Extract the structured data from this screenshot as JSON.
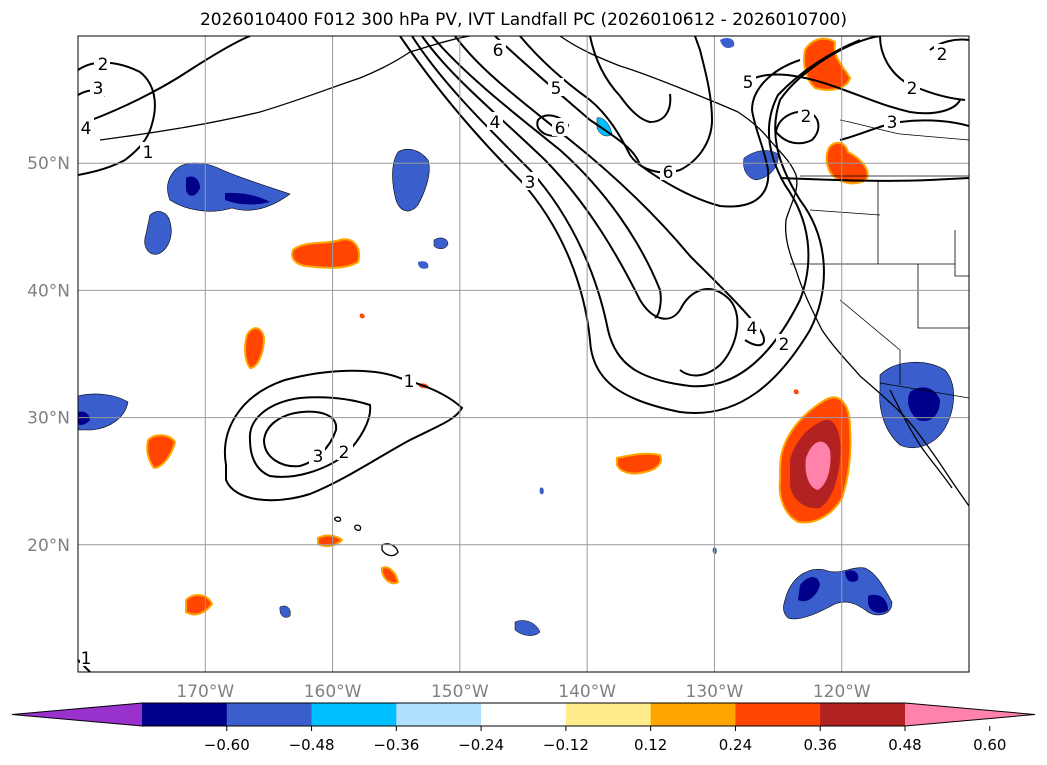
{
  "title": "2026010400 F012 300 hPa PV, IVT Landfall PC (2026010612 - 2026010700)",
  "map": {
    "projection": "equirectangular",
    "lon_range": [
      -180,
      -110
    ],
    "lat_range": [
      10,
      60
    ],
    "grid_lons": [
      -170,
      -160,
      -150,
      -140,
      -130,
      -120
    ],
    "grid_lats": [
      20,
      30,
      40,
      50
    ],
    "lon_labels": [
      "170°W",
      "160°W",
      "150°W",
      "140°W",
      "130°W",
      "120°W"
    ],
    "lat_labels": [
      "20°N",
      "30°N",
      "40°N",
      "50°N"
    ],
    "grid": true
  },
  "colorbar": {
    "ticks": [
      "−0.60",
      "−0.48",
      "−0.36",
      "−0.24",
      "−0.12",
      "0.12",
      "0.24",
      "0.36",
      "0.48",
      "0.60"
    ],
    "colors": [
      "#9932CC",
      "#00008B",
      "#3A5FCD",
      "#00BFFF",
      "#B0E2FF",
      "#FFFFFF",
      "#FFEC8B",
      "#FFA500",
      "#FF4500",
      "#B22222",
      "#FF82AB"
    ],
    "extend": "both"
  },
  "contour_labels": [
    "1",
    "2",
    "3",
    "4",
    "5",
    "6"
  ]
}
